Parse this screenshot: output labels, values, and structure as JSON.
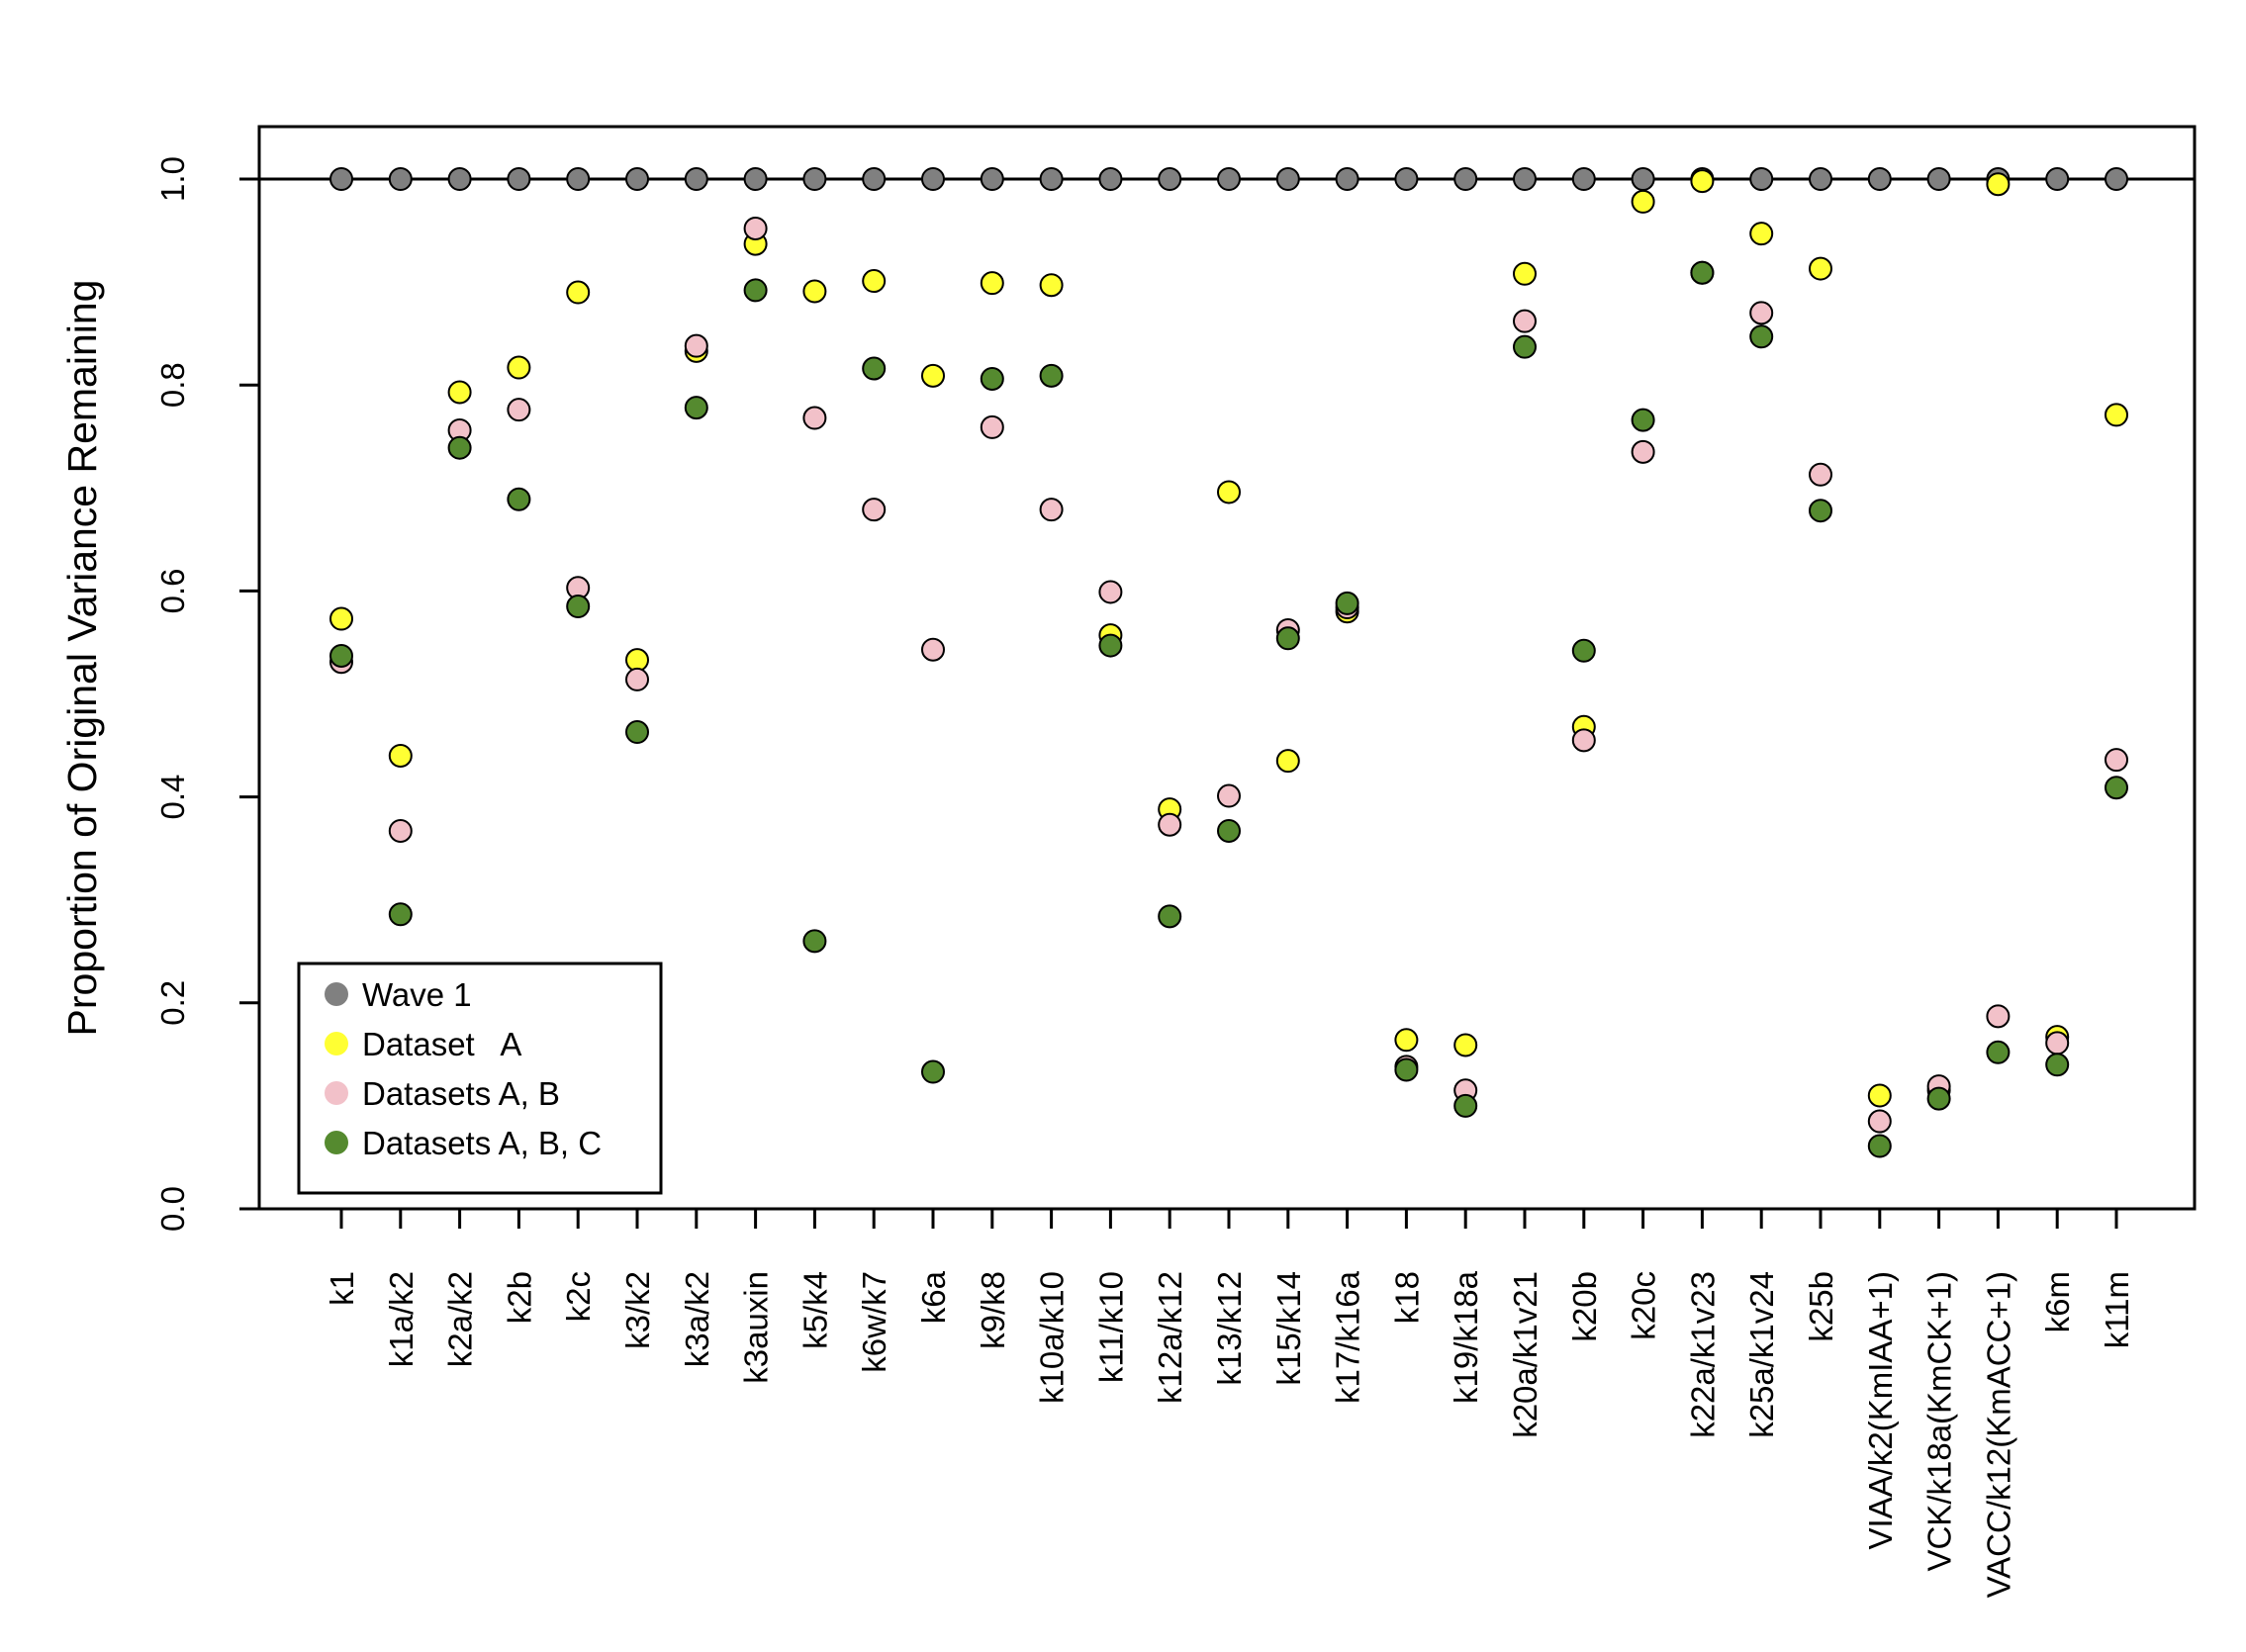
{
  "chart_data": {
    "type": "scatter",
    "title": "",
    "xlabel": "",
    "ylabel": "Proportion of Original Variance Remaining",
    "ylim": [
      0,
      1.05
    ],
    "y_ticks": [
      0.0,
      0.2,
      0.4,
      0.6,
      0.8,
      1.0
    ],
    "y_tick_labels": [
      "0.0",
      "0.2",
      "0.4",
      "0.6",
      "0.8",
      "1.0"
    ],
    "reference_line": 1.0,
    "legend_position": "bottom-left",
    "categories": [
      "k1",
      "k1a/k2",
      "k2a/k2",
      "k2b",
      "k2c",
      "k3/k2",
      "k3a/k2",
      "k3auxin",
      "k5/k4",
      "k6w/k7",
      "k6a",
      "k9/k8",
      "k10a/k10",
      "k11/k10",
      "k12a/k12",
      "k13/k12",
      "k15/k14",
      "k17/k16a",
      "k18",
      "k19/k18a",
      "k20a/k1v21",
      "k20b",
      "k20c",
      "k22a/k1v23",
      "k25a/k1v24",
      "k25b",
      "VIAA/k2(KmIAA+1)",
      "VCK/k18a(KmCK+1)",
      "VACC/k12(KmACC+1)",
      "k6m",
      "k11m"
    ],
    "series": [
      {
        "name": "Wave 1",
        "color": "#808080",
        "values": [
          1.0,
          1.0,
          1.0,
          1.0,
          1.0,
          1.0,
          1.0,
          1.0,
          1.0,
          1.0,
          1.0,
          1.0,
          1.0,
          1.0,
          1.0,
          1.0,
          1.0,
          1.0,
          1.0,
          1.0,
          1.0,
          1.0,
          1.0,
          1.0,
          1.0,
          1.0,
          1.0,
          1.0,
          1.0,
          1.0,
          1.0
        ]
      },
      {
        "name": "Dataset   A",
        "color": "#ffff33",
        "values": [
          0.573,
          0.44,
          0.793,
          0.817,
          0.89,
          0.533,
          0.833,
          0.937,
          0.891,
          0.901,
          0.809,
          0.899,
          0.897,
          0.557,
          0.388,
          0.696,
          0.435,
          0.58,
          0.164,
          0.159,
          0.908,
          0.468,
          0.978,
          0.998,
          0.947,
          0.913,
          0.11,
          0.115,
          0.995,
          0.167,
          0.771
        ]
      },
      {
        "name": "Datasets A, B",
        "color": "#f2c1c9",
        "values": [
          0.531,
          0.367,
          0.756,
          0.776,
          0.603,
          0.514,
          0.838,
          0.952,
          0.768,
          0.679,
          0.543,
          0.759,
          0.679,
          0.599,
          0.373,
          0.401,
          0.562,
          0.584,
          0.138,
          0.115,
          0.862,
          0.455,
          0.735,
          0.909,
          0.87,
          0.713,
          0.085,
          0.119,
          0.187,
          0.161,
          0.436
        ]
      },
      {
        "name": "Datasets A, B, C",
        "color": "#558a2f",
        "values": [
          0.537,
          0.286,
          0.739,
          0.689,
          0.585,
          0.463,
          0.778,
          0.892,
          0.26,
          0.816,
          0.133,
          0.806,
          0.809,
          0.547,
          0.284,
          0.367,
          0.554,
          0.588,
          0.135,
          0.1,
          0.837,
          0.542,
          0.766,
          0.909,
          0.847,
          0.678,
          0.061,
          0.107,
          0.152,
          0.14,
          0.409
        ]
      }
    ]
  }
}
